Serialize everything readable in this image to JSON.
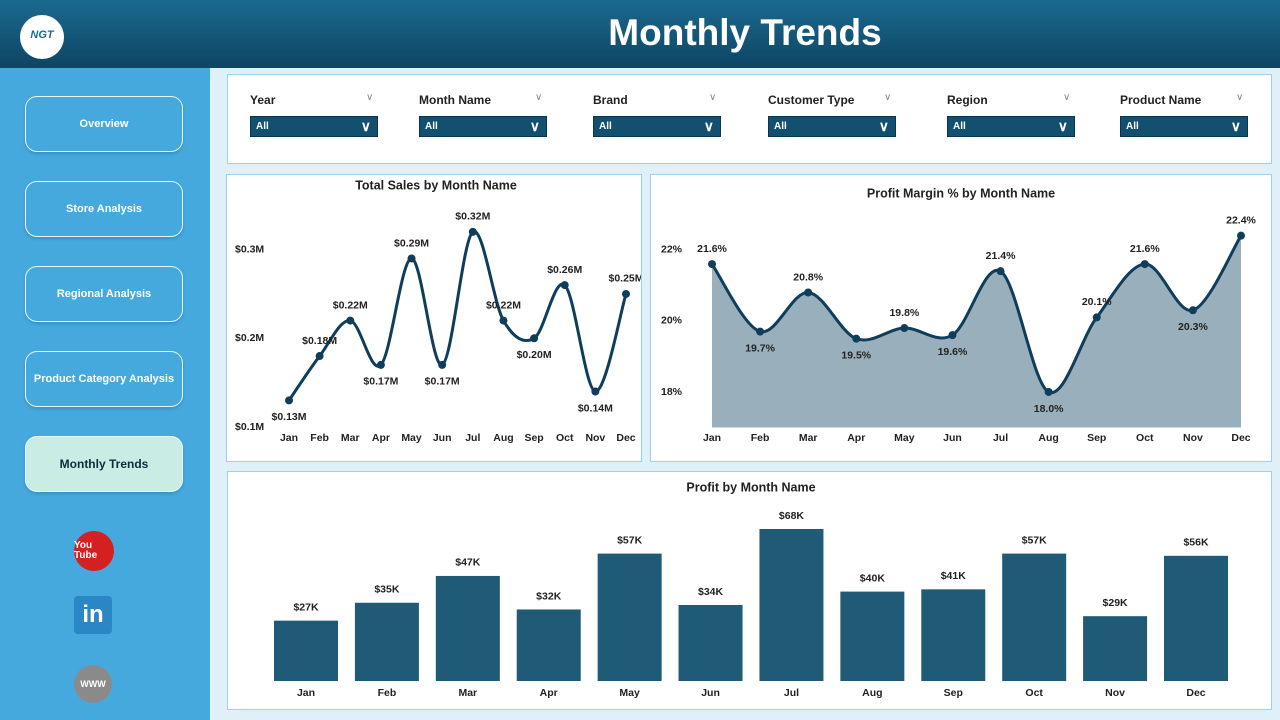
{
  "header": {
    "logo": "NGT",
    "title": "Monthly Trends"
  },
  "nav": [
    "Overview",
    "Store Analysis",
    "Regional Analysis",
    "Product Category Analysis",
    "Monthly Trends"
  ],
  "icons": {
    "youtube": "You Tube",
    "linkedin": "in",
    "web": "WWW"
  },
  "filters": [
    {
      "label": "Year",
      "value": "All"
    },
    {
      "label": "Month Name",
      "value": "All"
    },
    {
      "label": "Brand",
      "value": "All"
    },
    {
      "label": "Customer Type",
      "value": "All"
    },
    {
      "label": "Region",
      "value": "All"
    },
    {
      "label": "Product Name",
      "value": "All"
    }
  ],
  "chart_data": [
    {
      "type": "line",
      "title": "Total Sales by Month Name",
      "color": "#0f3d5c",
      "categories": [
        "Jan",
        "Feb",
        "Mar",
        "Apr",
        "May",
        "Jun",
        "Jul",
        "Aug",
        "Sep",
        "Oct",
        "Nov",
        "Dec"
      ],
      "values": [
        0.13,
        0.18,
        0.22,
        0.17,
        0.29,
        0.17,
        0.32,
        0.22,
        0.2,
        0.26,
        0.14,
        0.25
      ],
      "value_labels": [
        "$0.13M",
        "$0.18M",
        "$0.22M",
        "$0.17M",
        "$0.29M",
        "$0.17M",
        "$0.32M",
        "$0.22M",
        "$0.20M",
        "$0.26M",
        "$0.14M",
        "$0.25M"
      ],
      "ylim": [
        0.1,
        0.33
      ],
      "yticks": [
        {
          "value": 0.1,
          "label": "$0.1M"
        },
        {
          "value": 0.2,
          "label": "$0.2M"
        },
        {
          "value": 0.3,
          "label": "$0.3M"
        }
      ]
    },
    {
      "type": "area",
      "title": "Profit Margin % by Month Name",
      "color": "#0f3d5c",
      "fill": "#9aafbc",
      "categories": [
        "Jan",
        "Feb",
        "Mar",
        "Apr",
        "May",
        "Jun",
        "Jul",
        "Aug",
        "Sep",
        "Oct",
        "Nov",
        "Dec"
      ],
      "values": [
        21.6,
        19.7,
        20.8,
        19.5,
        19.8,
        19.6,
        21.4,
        18.0,
        20.1,
        21.6,
        20.3,
        22.4
      ],
      "value_labels": [
        "21.6%",
        "19.7%",
        "20.8%",
        "19.5%",
        "19.8%",
        "19.6%",
        "21.4%",
        "18.0%",
        "20.1%",
        "21.6%",
        "20.3%",
        "22.4%"
      ],
      "ylim": [
        17,
        22.7
      ],
      "yticks": [
        {
          "value": 18,
          "label": "18%"
        },
        {
          "value": 20,
          "label": "20%"
        },
        {
          "value": 22,
          "label": "22%"
        }
      ]
    },
    {
      "type": "bar",
      "title": "Profit by Month Name",
      "color": "#1f5b76",
      "categories": [
        "Jan",
        "Feb",
        "Mar",
        "Apr",
        "May",
        "Jun",
        "Jul",
        "Aug",
        "Sep",
        "Oct",
        "Nov",
        "Dec"
      ],
      "values": [
        27,
        35,
        47,
        32,
        57,
        34,
        68,
        40,
        41,
        57,
        29,
        56
      ],
      "value_labels": [
        "$27K",
        "$35K",
        "$47K",
        "$32K",
        "$57K",
        "$34K",
        "$68K",
        "$40K",
        "$41K",
        "$57K",
        "$29K",
        "$56K"
      ]
    }
  ]
}
